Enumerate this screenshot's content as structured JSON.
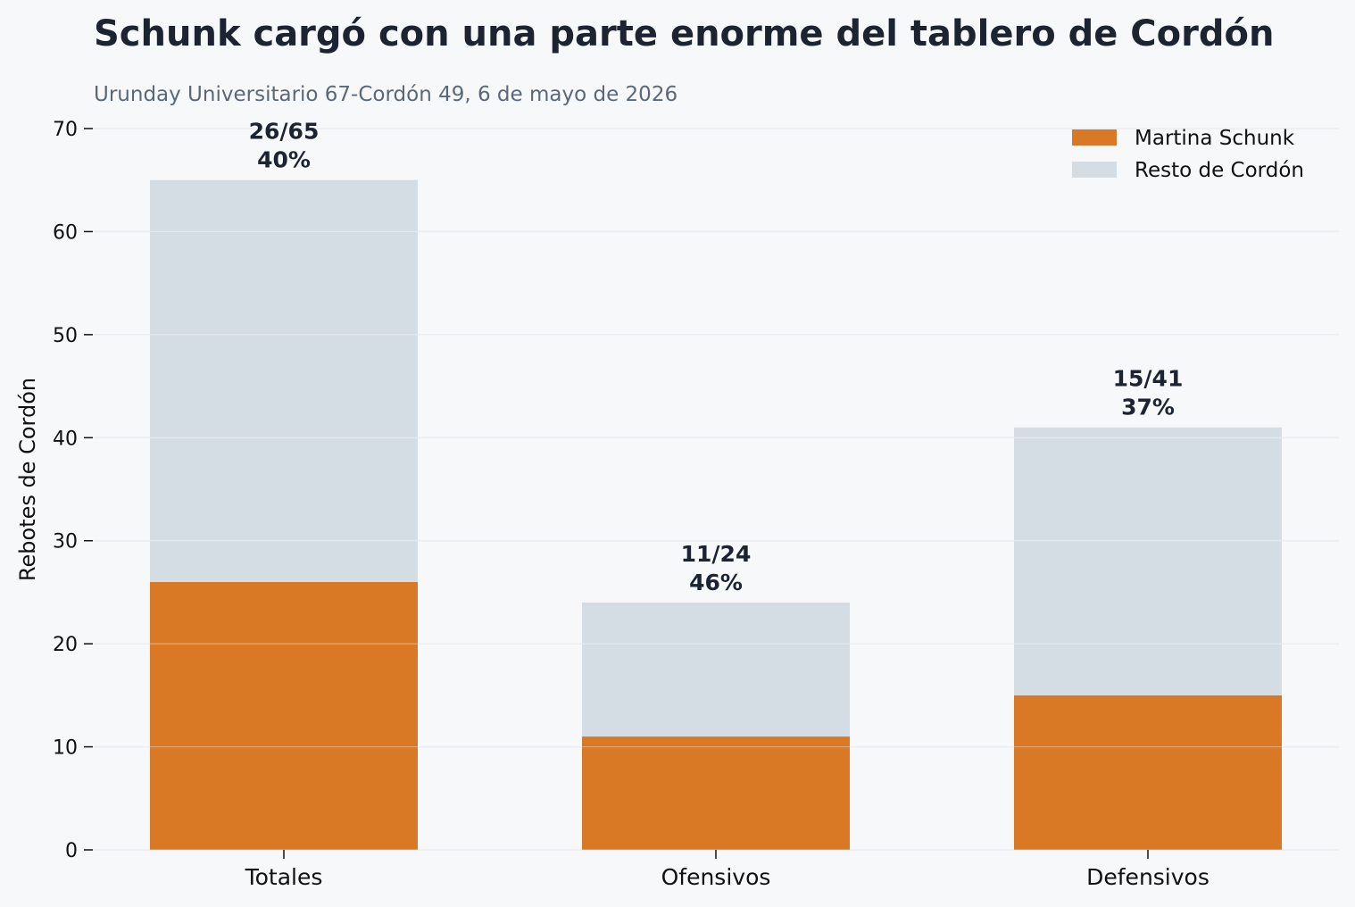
{
  "chart_data": {
    "type": "bar",
    "stacked": true,
    "title": "Schunk cargó con una parte enorme del tablero de Cordón",
    "subtitle": "Urunday Universitario 67-Cordón 49, 6 de mayo de 2026",
    "xlabel": "",
    "ylabel": "Rebotes de Cordón",
    "ylim": [
      0,
      70
    ],
    "yticks": [
      0,
      10,
      20,
      30,
      40,
      50,
      60,
      70
    ],
    "categories": [
      "Totales",
      "Ofensivos",
      "Defensivos"
    ],
    "series": [
      {
        "name": "Martina Schunk",
        "values": [
          26,
          11,
          15
        ],
        "color": "#d97925"
      },
      {
        "name": "Resto de Cordón",
        "values": [
          39,
          13,
          26
        ],
        "color": "#d5dde4"
      }
    ],
    "totals": [
      65,
      24,
      41
    ],
    "data_labels": [
      {
        "fraction": "26/65",
        "percent": "40%"
      },
      {
        "fraction": "11/24",
        "percent": "46%"
      },
      {
        "fraction": "15/41",
        "percent": "37%"
      }
    ],
    "grid": true,
    "legend_position": "top-right",
    "colors": {
      "background": "#f7f8fa",
      "grid": "#e3e7eb",
      "title": "#1b2430",
      "subtitle": "#5a6878"
    }
  }
}
